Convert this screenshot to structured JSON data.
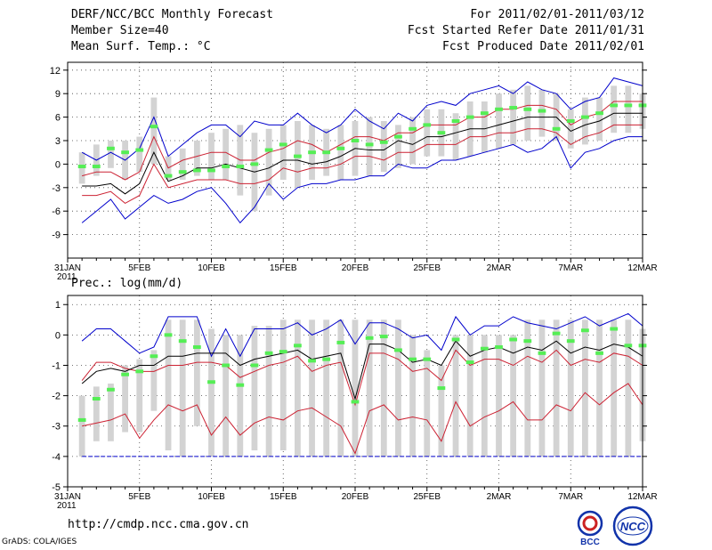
{
  "header": {
    "title": "DERF/NCC/BCC Monthly Forecast",
    "member_size": "Member Size=40",
    "variable": "Mean Surf. Temp.: °C",
    "period": "For 2011/02/01-2011/03/12",
    "fcst_started": "Fcst Started Refer Date 2011/01/31",
    "fcst_produced": "Fcst Produced Date 2011/02/01"
  },
  "footer": {
    "url": "http://cmdp.ncc.cma.gov.cn",
    "credit": "GrADS: COLA/IGES",
    "logo_left_text": "BCC",
    "logo_right_text": "NCC"
  },
  "colors": {
    "box": "#d3d3d3",
    "median": "#55ee55",
    "mean": "#000000",
    "inner": "#cc2233",
    "outer": "#0000cc",
    "axis": "#000000"
  },
  "chart_data": [
    {
      "type": "boxplot",
      "title": "Mean Surf. Temp.: °C",
      "ylim": [
        -12,
        13
      ],
      "yticks": [
        12,
        9,
        6,
        3,
        0,
        -3,
        -6,
        -9
      ],
      "xlim": [
        0,
        40
      ],
      "xticks": [
        {
          "x": 0,
          "label": "31JAN",
          "sub": "2011"
        },
        {
          "x": 5,
          "label": "5FEB"
        },
        {
          "x": 10,
          "label": "10FEB"
        },
        {
          "x": 15,
          "label": "15FEB"
        },
        {
          "x": 20,
          "label": "20FEB"
        },
        {
          "x": 25,
          "label": "25FEB"
        },
        {
          "x": 30,
          "label": "2MAR"
        },
        {
          "x": 35,
          "label": "7MAR"
        },
        {
          "x": 40,
          "label": "12MAR"
        }
      ],
      "days": [
        1,
        2,
        3,
        4,
        5,
        6,
        7,
        8,
        9,
        10,
        11,
        12,
        13,
        14,
        15,
        16,
        17,
        18,
        19,
        20,
        21,
        22,
        23,
        24,
        25,
        26,
        27,
        28,
        29,
        30,
        31,
        32,
        33,
        34,
        35,
        36,
        37,
        38,
        39,
        40
      ],
      "box_low": [
        -2.5,
        -1.5,
        -0.5,
        -2,
        -1,
        0,
        -2,
        -2,
        -1.5,
        -2,
        -2,
        -4,
        -6,
        -4,
        -2,
        -3,
        -2,
        -1.5,
        -2,
        -1.5,
        -1.5,
        -1,
        -0.5,
        0,
        1,
        1,
        0.5,
        1,
        1.5,
        2,
        2.5,
        3,
        3.5,
        3,
        2,
        2.5,
        3,
        4,
        4,
        4.5
      ],
      "box_high": [
        1.5,
        2.5,
        3,
        3,
        3.5,
        8.5,
        1,
        2,
        3,
        4,
        4.5,
        5,
        4,
        4.5,
        5,
        5.5,
        5,
        4.5,
        5,
        5.5,
        6,
        5.5,
        5,
        6,
        7,
        7,
        6.5,
        8,
        8,
        9,
        9.5,
        10,
        9.5,
        9,
        7,
        8.5,
        8.5,
        10,
        10,
        9
      ],
      "median": [
        -0.3,
        -0.3,
        2.0,
        1.5,
        1.8,
        4.8,
        -1.5,
        -1.0,
        -0.8,
        -0.8,
        -0.3,
        -0.3,
        0,
        1.8,
        2.5,
        1.0,
        1.5,
        1.5,
        2.0,
        3.0,
        2.5,
        2.8,
        3.5,
        4.5,
        5.0,
        4.0,
        5.5,
        6.0,
        6.5,
        7.0,
        7.2,
        7.0,
        6.8,
        4.5,
        5.5,
        6.0,
        6.5,
        7.5,
        7.5,
        7.5
      ],
      "mean": [
        -2.8,
        -2.8,
        -2.5,
        -3.8,
        -2.5,
        1.5,
        -2.2,
        -1.5,
        -0.5,
        -0.5,
        0,
        -0.5,
        -1.0,
        -0.5,
        0.5,
        0.5,
        0,
        0.3,
        1.0,
        2.0,
        1.8,
        1.8,
        3.0,
        2.5,
        3.5,
        3.5,
        4.0,
        4.5,
        4.5,
        5.0,
        5.5,
        6.0,
        6.0,
        6.0,
        4.2,
        5.0,
        5.5,
        6.5,
        6.5,
        6.5
      ],
      "inner_high": [
        -1.5,
        -1.0,
        -1.0,
        -2.0,
        -1.0,
        3.5,
        -0.5,
        0.5,
        1.0,
        1.5,
        1.5,
        0.5,
        0.5,
        1.5,
        2.0,
        3.0,
        2.5,
        1.5,
        2.5,
        3.5,
        3.5,
        3.0,
        4.0,
        4.0,
        5.0,
        5.0,
        5.0,
        6.0,
        6.0,
        7.0,
        7.0,
        7.5,
        7.5,
        7.0,
        5.0,
        6.0,
        6.5,
        8.0,
        8.0,
        8.0
      ],
      "inner_low": [
        -4.0,
        -4.0,
        -3.5,
        -5.0,
        -4.0,
        0,
        -3.0,
        -2.5,
        -2.0,
        -2.0,
        -2.0,
        -2.5,
        -2.5,
        -2.0,
        -0.5,
        -1.0,
        -0.5,
        -0.5,
        0,
        1.0,
        1.0,
        0.5,
        1.5,
        1.5,
        2.5,
        2.5,
        2.5,
        3.5,
        3.5,
        4.0,
        4.0,
        4.5,
        4.5,
        4.0,
        2.5,
        3.5,
        4.0,
        5.0,
        5.0,
        5.0
      ],
      "outer_high": [
        1.5,
        0.5,
        1.5,
        0.5,
        2.0,
        6.0,
        1.0,
        2.5,
        4.0,
        5.0,
        5.0,
        3.5,
        5.5,
        5.0,
        5.0,
        6.5,
        5.0,
        4.0,
        5.0,
        7.0,
        5.5,
        4.5,
        6.5,
        5.5,
        7.5,
        8.0,
        7.5,
        9.0,
        9.5,
        10.0,
        9.0,
        10.5,
        9.5,
        9.0,
        7.0,
        8.0,
        8.5,
        11.0,
        10.5,
        10.0
      ],
      "outer_low": [
        -7.5,
        -6.0,
        -4.5,
        -7.0,
        -5.5,
        -4.0,
        -5.0,
        -4.5,
        -3.5,
        -3.0,
        -5.0,
        -7.5,
        -5.5,
        -2.5,
        -4.5,
        -3.0,
        -2.5,
        -2.5,
        -2.0,
        -2.0,
        -1.5,
        -1.5,
        0,
        -0.5,
        -0.5,
        0.5,
        0.5,
        1.0,
        1.5,
        2.0,
        2.5,
        1.5,
        2.0,
        3.5,
        -0.5,
        1.5,
        2.0,
        3.0,
        3.5,
        3.5
      ]
    },
    {
      "type": "boxplot",
      "title": "Prec.: log(mm/d)",
      "ylim": [
        -5,
        1.3
      ],
      "yticks": [
        1,
        0,
        -1,
        -2,
        -3,
        -4,
        -5
      ],
      "xlim": [
        0,
        40
      ],
      "xticks": [
        {
          "x": 0,
          "label": "31JAN",
          "sub": "2011"
        },
        {
          "x": 5,
          "label": "5FEB"
        },
        {
          "x": 10,
          "label": "10FEB"
        },
        {
          "x": 15,
          "label": "15FEB"
        },
        {
          "x": 20,
          "label": "20FEB"
        },
        {
          "x": 25,
          "label": "25FEB"
        },
        {
          "x": 30,
          "label": "2MAR"
        },
        {
          "x": 35,
          "label": "7MAR"
        },
        {
          "x": 40,
          "label": "12MAR"
        }
      ],
      "days": [
        1,
        2,
        3,
        4,
        5,
        6,
        7,
        8,
        9,
        10,
        11,
        12,
        13,
        14,
        15,
        16,
        17,
        18,
        19,
        20,
        21,
        22,
        23,
        24,
        25,
        26,
        27,
        28,
        29,
        30,
        31,
        32,
        33,
        34,
        35,
        36,
        37,
        38,
        39,
        40
      ],
      "box_low": [
        -4,
        -3.5,
        -3.5,
        -3.2,
        -3.2,
        -2.5,
        -3.8,
        -4,
        -3,
        -4,
        -4,
        -4,
        -3.8,
        -4,
        -3.8,
        -4,
        -4,
        -4,
        -4,
        -4,
        -4,
        -4,
        -4,
        -4,
        -4,
        -4,
        -4,
        -4,
        -4,
        -4,
        -4,
        -4,
        -4,
        -4,
        -4,
        -4,
        -4,
        -4,
        -4,
        -3.5
      ],
      "box_high": [
        -2,
        -1.7,
        -1.6,
        -1.0,
        -0.8,
        -0.5,
        0.5,
        0.5,
        0.5,
        0.2,
        0,
        0,
        0.3,
        0.3,
        0.5,
        0.5,
        0.5,
        0.5,
        0.5,
        0.5,
        0.5,
        0.5,
        0.5,
        0,
        -0.5,
        -1,
        0,
        0,
        0,
        0,
        0,
        0.5,
        0.5,
        0.5,
        0.5,
        0.5,
        0.5,
        0.5,
        0.5,
        0.2
      ],
      "median": [
        -2.8,
        -2.1,
        -1.8,
        -1.3,
        -1.2,
        -0.7,
        0.0,
        -0.2,
        -0.4,
        -1.55,
        -1.0,
        -1.65,
        -1.0,
        -0.6,
        -0.55,
        -0.35,
        -0.85,
        -0.8,
        -0.25,
        -2.2,
        -0.1,
        -0.05,
        -0.5,
        -0.8,
        -0.8,
        -1.75,
        -0.15,
        -0.9,
        -0.45,
        -0.4,
        -0.15,
        -0.2,
        -0.6,
        0.05,
        -0.2,
        0.15,
        -0.6,
        0.2,
        -0.35,
        -0.35
      ],
      "mean": [
        -1.6,
        -1.2,
        -1.1,
        -1.2,
        -1.0,
        -1.0,
        -0.7,
        -0.7,
        -0.6,
        -0.6,
        -0.6,
        -1.0,
        -0.8,
        -0.7,
        -0.6,
        -0.5,
        -0.8,
        -0.7,
        -0.6,
        -2.1,
        -0.3,
        -0.3,
        -0.5,
        -0.9,
        -0.8,
        -1.0,
        -0.2,
        -0.7,
        -0.5,
        -0.4,
        -0.6,
        -0.4,
        -0.5,
        -0.2,
        -0.6,
        -0.4,
        -0.5,
        -0.3,
        -0.4,
        -0.7
      ],
      "inner_high": [
        -1.5,
        -0.9,
        -0.9,
        -1.1,
        -1.2,
        -1.2,
        -1.0,
        -1.0,
        -0.9,
        -0.9,
        -1.0,
        -1.4,
        -1.2,
        -1.0,
        -0.9,
        -0.7,
        -1.2,
        -1.0,
        -0.9,
        -2.3,
        -0.6,
        -0.6,
        -0.8,
        -1.2,
        -1.1,
        -1.5,
        -0.5,
        -1.0,
        -0.8,
        -0.8,
        -1.0,
        -0.7,
        -0.9,
        -0.5,
        -1.0,
        -0.8,
        -0.9,
        -0.6,
        -0.7,
        -1.0
      ],
      "inner_low": [
        -3.0,
        -2.9,
        -2.8,
        -2.6,
        -3.4,
        -2.8,
        -2.3,
        -2.5,
        -2.3,
        -3.3,
        -2.7,
        -3.3,
        -2.9,
        -2.7,
        -2.8,
        -2.5,
        -2.4,
        -2.7,
        -3.0,
        -3.9,
        -2.5,
        -2.3,
        -2.8,
        -2.7,
        -2.8,
        -3.5,
        -2.2,
        -3.0,
        -2.7,
        -2.5,
        -2.2,
        -2.8,
        -2.8,
        -2.3,
        -2.5,
        -1.9,
        -2.3,
        -1.9,
        -1.6,
        -2.3
      ],
      "outer_high": [
        -0.2,
        0.2,
        0.2,
        -0.2,
        -0.6,
        -0.4,
        0.6,
        0.6,
        0.6,
        -0.7,
        0.2,
        -0.7,
        0.2,
        0.2,
        0.2,
        0.4,
        0.0,
        0.2,
        0.5,
        -0.3,
        0.4,
        0.4,
        0.2,
        -0.1,
        0.0,
        -0.5,
        0.6,
        0.0,
        0.3,
        0.3,
        0.6,
        0.4,
        0.3,
        0.2,
        0.4,
        0.6,
        0.3,
        0.5,
        0.7,
        0.3
      ],
      "outer_low": [
        -4,
        -4,
        -4,
        -4,
        -4,
        -4,
        -4,
        -4,
        -4,
        -4,
        -4,
        -4,
        -4,
        -4,
        -4,
        -4,
        -4,
        -4,
        -4,
        -4,
        -4,
        -4,
        -4,
        -4,
        -4,
        -4,
        -4,
        -4,
        -4,
        -4,
        -4,
        -4,
        -4,
        -4,
        -4,
        -4,
        -4,
        -4,
        -4,
        -4
      ]
    }
  ]
}
